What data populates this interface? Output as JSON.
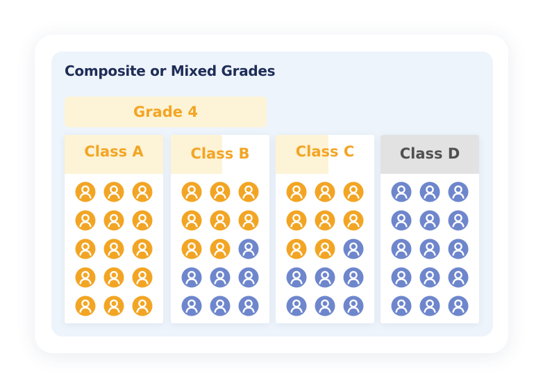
{
  "title": "Composite or Mixed Grades",
  "grade_banner": "Grade 4",
  "colors": {
    "grade4": "#f2a524",
    "other": "#6e86cc",
    "title": "#1f2d58",
    "grade_highlight": "#fdf3d6",
    "class_d_header": "#e2e2e2",
    "class_d_label": "#505050"
  },
  "icon_name": "person-icon",
  "classes": [
    {
      "label": "Class A",
      "grade4_students": 15,
      "other_students": 0,
      "header": "grade-highlight"
    },
    {
      "label": "Class B",
      "grade4_students": 8,
      "other_students": 7,
      "header": "partial-highlight"
    },
    {
      "label": "Class C",
      "grade4_students": 8,
      "other_students": 7,
      "header": "partial-highlight"
    },
    {
      "label": "Class D",
      "grade4_students": 0,
      "other_students": 15,
      "header": "gray"
    }
  ]
}
